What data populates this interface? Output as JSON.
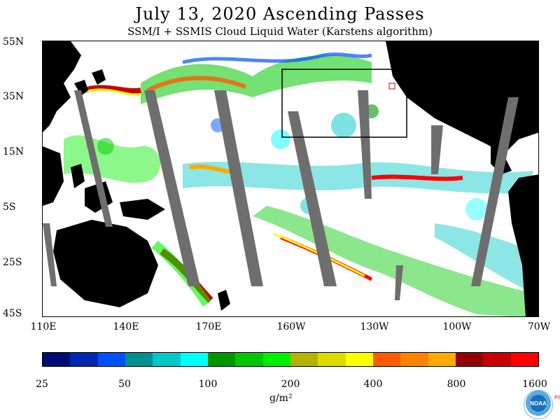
{
  "header": {
    "title": "July 13, 2020  Ascending Passes",
    "subtitle": "SSM/I + SSMIS Cloud Liquid Water (Karstens algorithm)"
  },
  "map": {
    "lat_labels": [
      "55N",
      "35N",
      "15N",
      "5S",
      "25S",
      "45S"
    ],
    "lon_labels": [
      "110E",
      "140E",
      "170E",
      "160W",
      "130W",
      "100W",
      "70W"
    ],
    "colors": {
      "land": "#000000",
      "no_data_swath_gap": "#6e6e6e",
      "ocean_clear": "#ffffff",
      "highlight_box": "#000000"
    }
  },
  "colorbar": {
    "colors": [
      "#000a78",
      "#0026b4",
      "#0050ff",
      "#009090",
      "#00c8c8",
      "#00ffff",
      "#009600",
      "#00c800",
      "#00f000",
      "#b4b400",
      "#dcdc00",
      "#ffff00",
      "#ff5a00",
      "#ff8200",
      "#ffaa00",
      "#960000",
      "#c80000",
      "#ff0000"
    ],
    "labels": [
      "25",
      "50",
      "100",
      "200",
      "400",
      "800",
      "1600"
    ],
    "units": "g/m²"
  },
  "logo": {
    "text": "NOAA",
    "side_text": "PSL"
  }
}
